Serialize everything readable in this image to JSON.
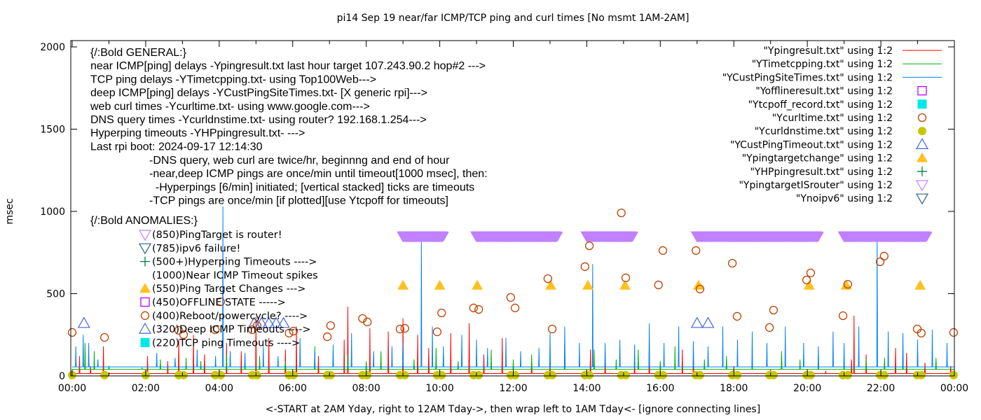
{
  "chart_data": {
    "type": "line",
    "title": "pi14 Sep 19  near/far ICMP/TCP ping and curl times [No msmt 1AM-2AM]",
    "xlabel": "<-START at 2AM Yday, right to 12AM Tday->, then wrap left to 1AM Tday<- [ignore connecting lines]",
    "ylabel": "msec",
    "xlim": [
      0,
      24
    ],
    "ylim": [
      0,
      2050
    ],
    "x_ticks": [
      "00:00",
      "02:00",
      "04:00",
      "06:00",
      "08:00",
      "10:00",
      "12:00",
      "14:00",
      "16:00",
      "18:00",
      "20:00",
      "22:00",
      "00:00"
    ],
    "y_ticks": [
      "0",
      "500",
      "1000",
      "1500",
      "2000"
    ],
    "grid": false,
    "legend_placement": "top-right",
    "legend": [
      {
        "label": "\"Ypingresult.txt\" using 1:2",
        "symbol": "line",
        "color": "#ff0000"
      },
      {
        "label": "\"YTimetcpping.txt\" using 1:2",
        "symbol": "line",
        "color": "#00b000"
      },
      {
        "label": "\"YCustPingSiteTimes.txt\" using 1:2",
        "symbol": "line",
        "color": "#0080ff"
      },
      {
        "label": "\"Yofflineresult.txt\" using 1:2",
        "symbol": "open-square",
        "color": "#c000ff"
      },
      {
        "label": "\"Ytcpoff_record.txt\" using 1:2",
        "symbol": "filled-square",
        "color": "#00e8e8"
      },
      {
        "label": "\"Ycurltime.txt\" using 1:2",
        "symbol": "open-circle",
        "color": "#c04000"
      },
      {
        "label": "\"Ycurldnstime.txt\" using 1:2",
        "symbol": "filled-circle",
        "color": "#c8c800"
      },
      {
        "label": "\"YCustPingTimeout.txt\" using 1:2",
        "symbol": "open-triangle",
        "color": "#4169e1"
      },
      {
        "label": "\"Ypingtargetchange\" using 1:2",
        "symbol": "filled-triangle",
        "color": "#ffc020"
      },
      {
        "label": "\"YHPpingresult.txt\" using 1:2",
        "symbol": "plus",
        "color": "#008040"
      },
      {
        "label": "\"YpingtargetISrouter\" using 1:2",
        "symbol": "open-down-triangle",
        "color": "#c080ff"
      },
      {
        "label": "\"Ynoipv6\" using 1:2",
        "symbol": "open-down-triangle",
        "color": "#306080"
      }
    ],
    "series": [
      {
        "name": "\"Ypingresult.txt\" using 1:2",
        "color": "#ff0000",
        "baseline": 15,
        "spikes": [
          [
            0.2,
            120
          ],
          [
            0.5,
            60
          ],
          [
            0.85,
            180
          ],
          [
            2.05,
            120
          ],
          [
            2.6,
            90
          ],
          [
            2.9,
            220
          ],
          [
            3.3,
            250
          ],
          [
            3.6,
            130
          ],
          [
            4.2,
            200
          ],
          [
            4.6,
            150
          ],
          [
            5.0,
            360
          ],
          [
            5.35,
            230
          ],
          [
            5.8,
            160
          ],
          [
            6.1,
            300
          ],
          [
            6.7,
            120
          ],
          [
            7.4,
            220
          ],
          [
            7.5,
            420
          ],
          [
            8.1,
            290
          ],
          [
            8.6,
            270
          ],
          [
            9.0,
            350
          ],
          [
            9.4,
            250
          ],
          [
            9.7,
            170
          ],
          [
            10.3,
            260
          ],
          [
            10.8,
            320
          ],
          [
            11.2,
            130
          ],
          [
            11.7,
            230
          ],
          [
            12.5,
            80
          ],
          [
            13.0,
            90
          ],
          [
            14.1,
            160
          ],
          [
            14.5,
            110
          ],
          [
            15.3,
            90
          ],
          [
            15.7,
            210
          ],
          [
            16.6,
            160
          ],
          [
            16.9,
            130
          ],
          [
            18.0,
            60
          ],
          [
            19.0,
            40
          ],
          [
            20.5,
            30
          ],
          [
            21.2,
            100
          ],
          [
            21.27,
            366
          ],
          [
            21.6,
            130
          ],
          [
            22.4,
            170
          ],
          [
            22.7,
            140
          ],
          [
            23.2,
            80
          ],
          [
            23.9,
            60
          ]
        ]
      },
      {
        "name": "\"YTimetcpping.txt\" using 1:2",
        "color": "#00b000",
        "baseline": 40,
        "spikes": [
          [
            0.35,
            200
          ],
          [
            0.6,
            150
          ],
          [
            1.0,
            60
          ],
          [
            1.9,
            50
          ],
          [
            2.4,
            100
          ],
          [
            3.1,
            110
          ],
          [
            3.5,
            90
          ],
          [
            4.2,
            130
          ],
          [
            4.7,
            80
          ],
          [
            5.1,
            120
          ],
          [
            5.8,
            90
          ],
          [
            6.6,
            180
          ],
          [
            7.5,
            130
          ],
          [
            8.0,
            90
          ],
          [
            8.4,
            150
          ],
          [
            9.3,
            100
          ],
          [
            9.9,
            170
          ],
          [
            10.5,
            90
          ],
          [
            11.4,
            160
          ],
          [
            12.0,
            100
          ],
          [
            12.5,
            130
          ],
          [
            13.4,
            190
          ],
          [
            14.2,
            160
          ],
          [
            14.8,
            100
          ],
          [
            15.4,
            160
          ],
          [
            16.0,
            90
          ],
          [
            16.4,
            180
          ],
          [
            17.2,
            100
          ],
          [
            17.8,
            120
          ],
          [
            18.5,
            90
          ],
          [
            19.3,
            150
          ],
          [
            19.8,
            100
          ],
          [
            20.3,
            130
          ],
          [
            21.0,
            90
          ],
          [
            21.6,
            100
          ],
          [
            22.1,
            110
          ],
          [
            22.6,
            120
          ],
          [
            23.5,
            110
          ]
        ]
      },
      {
        "name": "\"YCustPingSiteTimes.txt\" using 1:2",
        "color": "#0080ff",
        "baseline": 55,
        "spikes": [
          [
            0.1,
            180
          ],
          [
            0.3,
            250
          ],
          [
            0.45,
            200
          ],
          [
            0.7,
            100
          ],
          [
            2.3,
            140
          ],
          [
            2.8,
            110
          ],
          [
            3.4,
            160
          ],
          [
            3.9,
            120
          ],
          [
            4.1,
            1030
          ],
          [
            4.3,
            150
          ],
          [
            4.7,
            140
          ],
          [
            5.2,
            180
          ],
          [
            5.6,
            120
          ],
          [
            6.2,
            230
          ],
          [
            6.6,
            150
          ],
          [
            7.1,
            190
          ],
          [
            7.6,
            260
          ],
          [
            8.2,
            150
          ],
          [
            8.7,
            180
          ],
          [
            9.0,
            200
          ],
          [
            9.5,
            820
          ],
          [
            9.8,
            300
          ],
          [
            10.1,
            180
          ],
          [
            10.6,
            250
          ],
          [
            11.0,
            220
          ],
          [
            11.3,
            170
          ],
          [
            11.8,
            230
          ],
          [
            12.2,
            150
          ],
          [
            12.7,
            170
          ],
          [
            13.0,
            260
          ],
          [
            13.4,
            300
          ],
          [
            13.8,
            200
          ],
          [
            14.16,
            680
          ],
          [
            14.5,
            200
          ],
          [
            14.9,
            220
          ],
          [
            15.3,
            190
          ],
          [
            15.7,
            320
          ],
          [
            16.1,
            200
          ],
          [
            16.5,
            300
          ],
          [
            16.9,
            210
          ],
          [
            17.3,
            180
          ],
          [
            17.7,
            300
          ],
          [
            18.1,
            220
          ],
          [
            18.5,
            270
          ],
          [
            18.9,
            200
          ],
          [
            19.4,
            300
          ],
          [
            19.9,
            200
          ],
          [
            20.3,
            180
          ],
          [
            20.7,
            270
          ],
          [
            21.0,
            200
          ],
          [
            21.4,
            300
          ],
          [
            21.9,
            850
          ],
          [
            22.2,
            270
          ],
          [
            22.6,
            260
          ],
          [
            23.0,
            220
          ],
          [
            23.4,
            280
          ],
          [
            23.8,
            200
          ]
        ]
      }
    ],
    "curl_times": {
      "x": [
        0.0,
        0.88,
        2.9,
        3.03,
        3.89,
        4.04,
        4.9,
        5.03,
        5.9,
        6.02,
        6.94,
        7.03,
        7.9,
        8.03,
        8.92,
        9.05,
        9.93,
        10.05,
        10.92,
        11.06,
        11.93,
        12.05,
        12.94,
        13.06,
        13.95,
        14.07,
        14.94,
        15.06,
        15.95,
        16.07,
        16.97,
        17.08,
        17.96,
        18.09,
        18.97,
        19.08,
        19.98,
        20.09,
        20.97,
        21.1,
        21.98,
        22.09,
        22.99,
        23.1,
        23.98
      ],
      "y": [
        264,
        234,
        277,
        251,
        281,
        451,
        281,
        306,
        260,
        272,
        238,
        306,
        349,
        328,
        285,
        289,
        268,
        383,
        413,
        404,
        477,
        413,
        591,
        285,
        664,
        791,
        991,
        596,
        553,
        762,
        762,
        528,
        685,
        362,
        294,
        400,
        583,
        626,
        366,
        557,
        694,
        728,
        285,
        260,
        264
      ]
    },
    "dns_times": {
      "x": [
        0.0,
        0.88,
        2.0,
        2.9,
        3.03,
        3.89,
        4.04,
        4.9,
        5.03,
        5.9,
        6.02,
        6.94,
        7.03,
        7.9,
        8.03,
        8.92,
        9.05,
        9.93,
        10.05,
        10.92,
        11.06,
        11.93,
        12.05,
        12.94,
        13.06,
        13.95,
        14.07,
        14.94,
        15.06,
        15.95,
        16.07,
        16.97,
        17.08,
        17.96,
        18.09,
        18.97,
        19.08,
        19.98,
        20.09,
        20.97,
        21.1,
        21.98,
        22.09,
        22.99,
        23.1,
        23.98
      ],
      "y": 5
    },
    "deep_icmp_timeouts": {
      "x": [
        0.32,
        4.95,
        5.15,
        5.35,
        5.55,
        5.75,
        17.0,
        17.3
      ],
      "y": 320
    },
    "ping_target_changes": {
      "x": [
        9.0,
        10.0,
        11.02,
        13.02,
        14.03,
        15.04,
        17.04,
        20.05,
        21.06,
        23.07
      ],
      "y": 550
    },
    "ping_target_is_router": {
      "y": 850,
      "ranges": [
        [
          9.0,
          10.1
        ],
        [
          11.0,
          13.2
        ],
        [
          14.0,
          15.25
        ],
        [
          17.0,
          20.3
        ],
        [
          21.0,
          23.25
        ]
      ]
    }
  },
  "annotations": {
    "general": [
      "{/:Bold GENERAL:}",
      "near ICMP[ping] delays -Ypingresult.txt last hour target 107.243.90.2 hop#2 --->",
      "TCP ping delays -YTimetcpping.txt- using Top100Web--->",
      "deep ICMP[ping] delays -YCustPingSiteTimes.txt- [X generic rpi]--->",
      "web curl times -Ycurltime.txt- using www.google.com--->",
      "DNS query times -Ycurldnstime.txt- using router? 192.168.1.254--->",
      "Hyperping timeouts -YHPpingresult.txt- --->",
      "Last rpi boot: 2024-09-17 12:14:30"
    ],
    "notes": [
      "-DNS query, web curl are twice/hr, beginnng and end of hour",
      "-near,deep ICMP pings are once/min until timeout[1000 msec], then:",
      "  -Hyperpings [6/min] initiated; [vertical stacked] ticks are timeouts",
      "-TCP pings are once/min [if plotted][use Ytcpoff for timeouts]"
    ],
    "anomalies_title": "{/:Bold ANOMALIES:}",
    "anomalies": [
      {
        "symbol": "open-down-triangle",
        "color": "#c080ff",
        "text": "(850)PingTarget is router!"
      },
      {
        "symbol": "open-down-triangle",
        "color": "#306080",
        "text": "(785)ipv6 failure!"
      },
      {
        "symbol": "plus",
        "color": "#008040",
        "text": "(500+)Hyperping Timeouts ---->"
      },
      {
        "symbol": "none",
        "color": "#ffffff",
        "text": "(1000)Near ICMP Timeout spikes"
      },
      {
        "symbol": "filled-triangle",
        "color": "#ffc020",
        "text": "(550)Ping Target Changes --->"
      },
      {
        "symbol": "open-square",
        "color": "#c000ff",
        "text": "(450)OFFLINE STATE ----->"
      },
      {
        "symbol": "open-circle",
        "color": "#c04000",
        "text": "(400)Reboot/powercycle? ---->"
      },
      {
        "symbol": "open-triangle",
        "color": "#4169e1",
        "text": "(320)Deep ICMP Timeouts ---->"
      },
      {
        "symbol": "filled-square",
        "color": "#00e8e8",
        "text": "(220)TCP ping Timeouts ---->"
      }
    ]
  }
}
